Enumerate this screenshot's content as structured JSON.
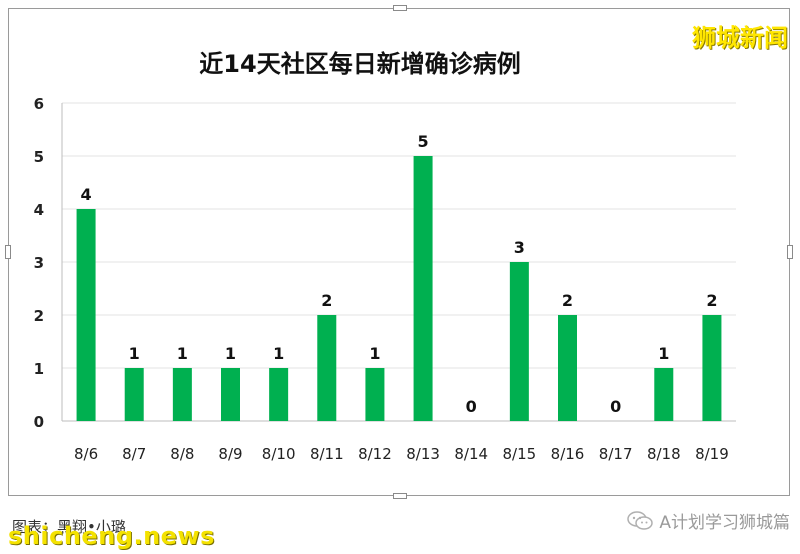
{
  "brand": "狮城新闻",
  "footer": {
    "caption": "图表：黑翔•小璐",
    "site": "shicheng.news",
    "wechat_account": "A计划学习狮城篇"
  },
  "chart_data": {
    "type": "bar",
    "title": "近14天社区每日新增确诊病例",
    "xlabel": "",
    "ylabel": "",
    "categories": [
      "8/6",
      "8/7",
      "8/8",
      "8/9",
      "8/10",
      "8/11",
      "8/12",
      "8/13",
      "8/14",
      "8/15",
      "8/16",
      "8/17",
      "8/18",
      "8/19"
    ],
    "values": [
      4,
      1,
      1,
      1,
      1,
      2,
      1,
      5,
      0,
      3,
      2,
      0,
      1,
      2
    ],
    "ylim": [
      0,
      6
    ],
    "yticks": [
      "0",
      "1",
      "2",
      "3",
      "4",
      "5",
      "6"
    ],
    "grid": true,
    "bar_color": "#00b050",
    "data_labels": true
  }
}
